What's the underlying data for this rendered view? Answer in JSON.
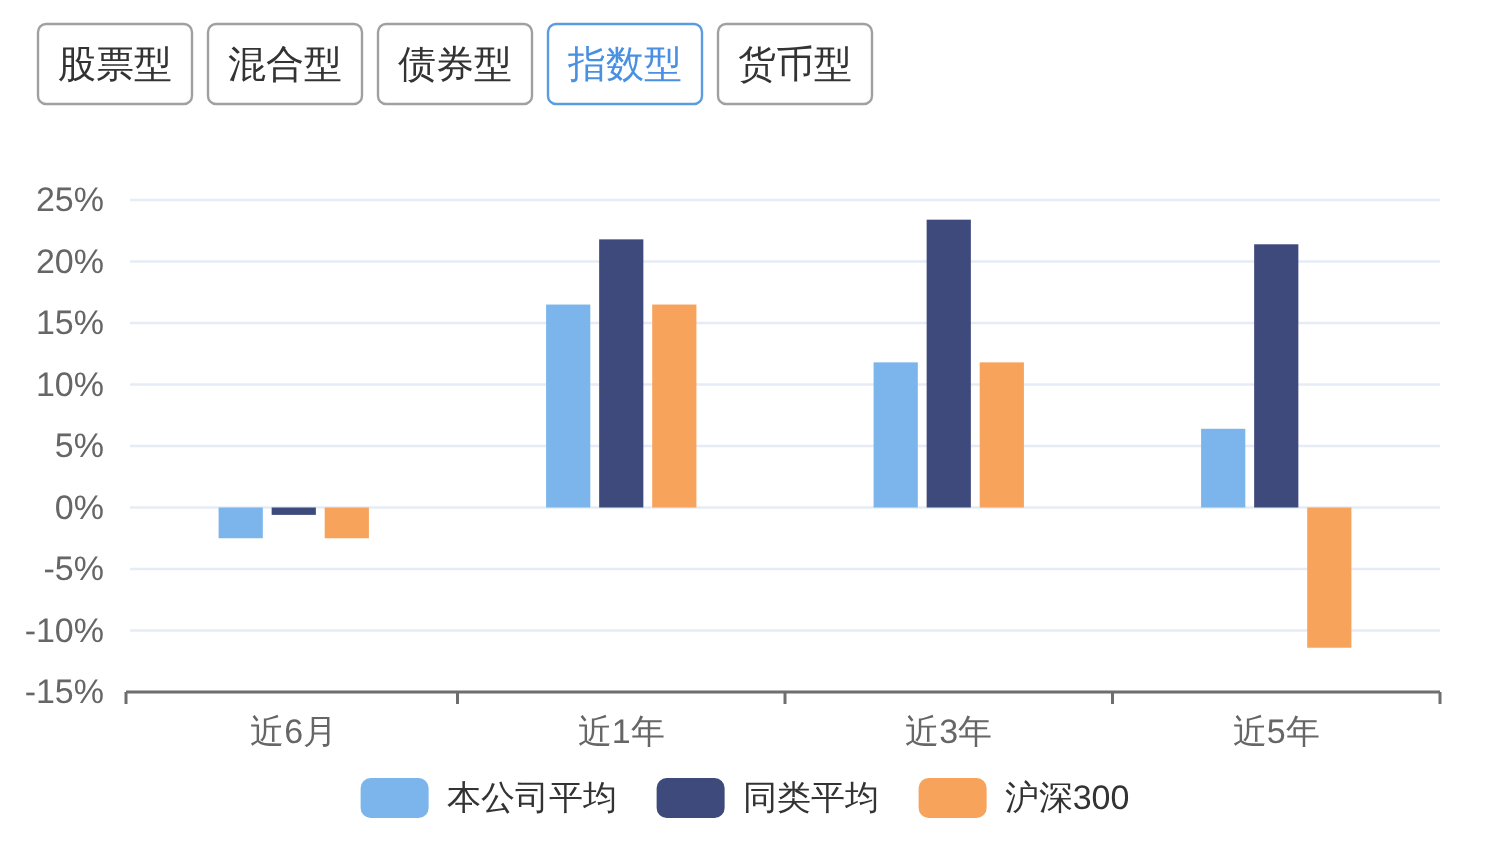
{
  "chart_data": {
    "type": "bar",
    "annotations": [
      "股票型",
      "混合型",
      "债券型",
      "指数型",
      "货币型"
    ],
    "categories": [
      "近6月",
      "近1年",
      "近3年",
      "近5年"
    ],
    "series": [
      {
        "name": "本公司平均",
        "color": "#7cb5ec",
        "values": [
          -2.5,
          16.5,
          11.8,
          6.4
        ]
      },
      {
        "name": "同类平均",
        "color": "#3f4a7c",
        "values": [
          -0.6,
          21.8,
          23.4,
          21.4
        ]
      },
      {
        "name": "沪深300",
        "color": "#f7a35c",
        "values": [
          -2.5,
          16.5,
          11.8,
          -11.4
        ]
      }
    ],
    "ylim": [
      -15,
      25
    ],
    "yticks": [
      {
        "value": -15,
        "label": "-15%"
      },
      {
        "value": -10,
        "label": "-10%"
      },
      {
        "value": -5,
        "label": "-5%"
      },
      {
        "value": 0,
        "label": "0%"
      },
      {
        "value": 5,
        "label": "5%"
      },
      {
        "value": 10,
        "label": "10%"
      },
      {
        "value": 15,
        "label": "15%"
      },
      {
        "value": 20,
        "label": "20%"
      },
      {
        "value": 25,
        "label": "25%"
      }
    ],
    "grid": "y",
    "legend": "bottom"
  }
}
